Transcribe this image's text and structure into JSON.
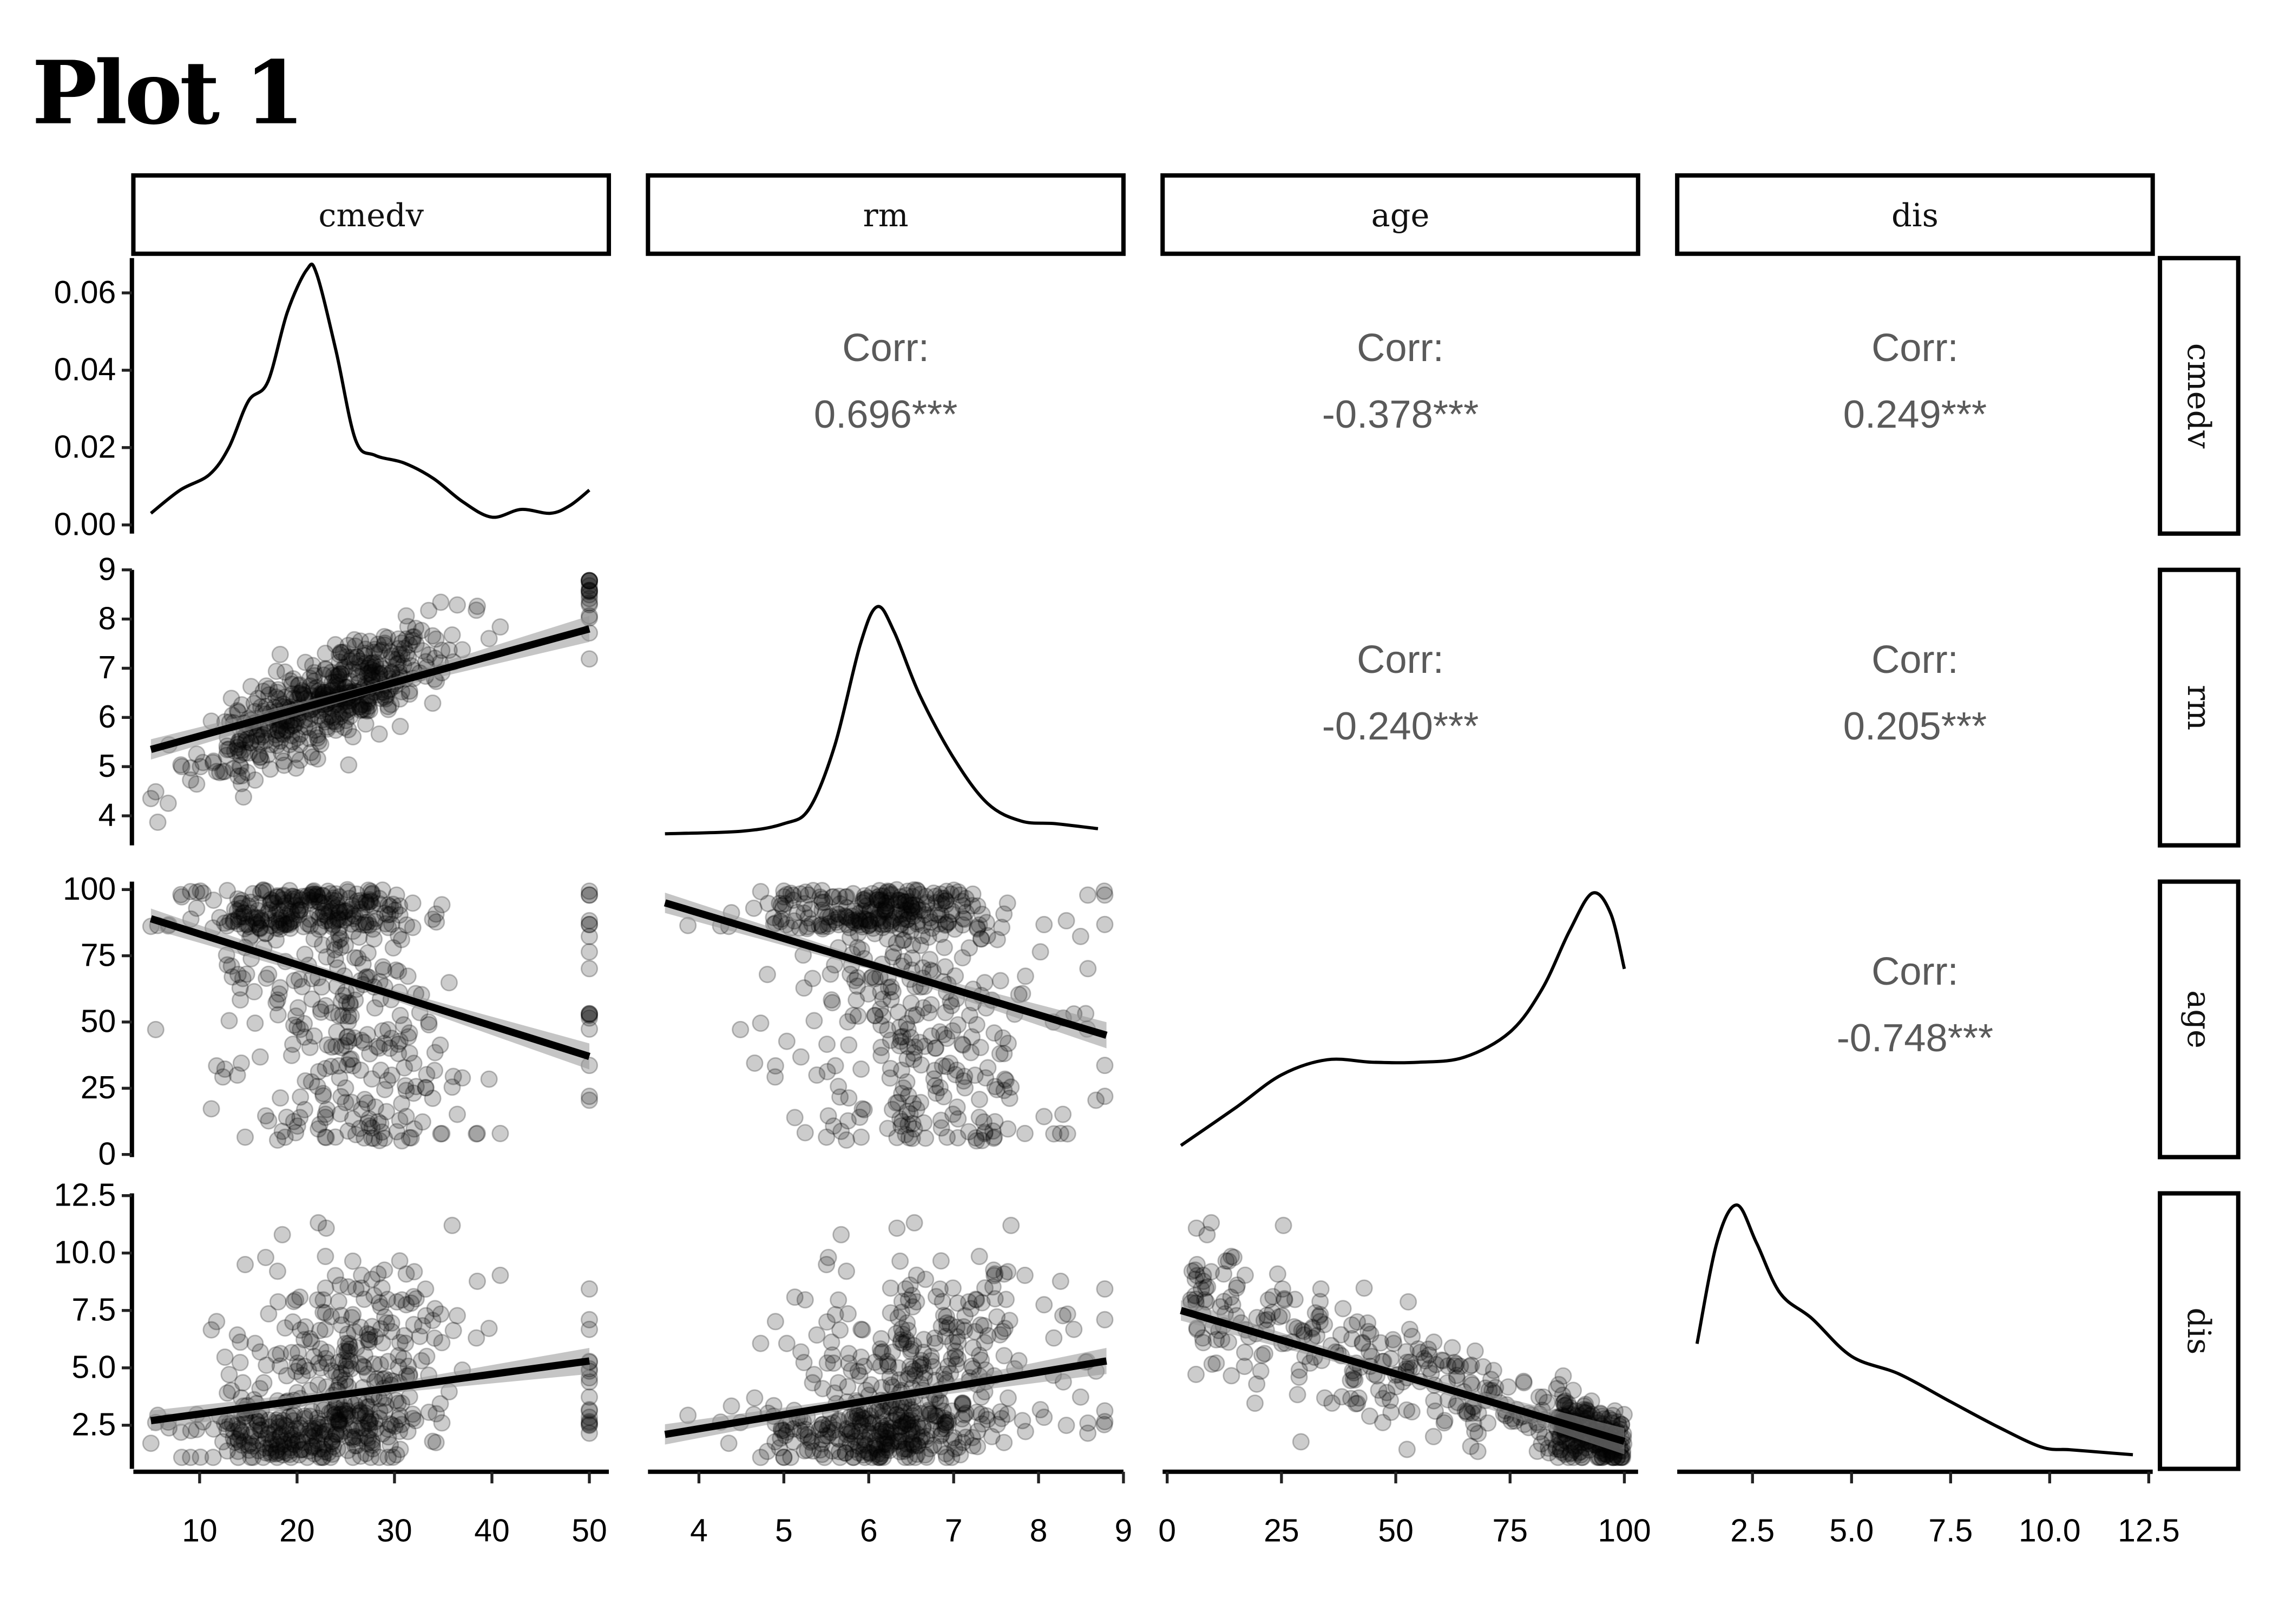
{
  "title": "Plot 1",
  "chart_data": {
    "type": "scatter",
    "kind": "pairs-matrix",
    "title": "Plot 1",
    "variables": [
      "cmedv",
      "rm",
      "age",
      "dis"
    ],
    "axes": {
      "cmedv": {
        "range": [
          3.2,
          52
        ],
        "ticks": [
          10,
          20,
          30,
          40,
          50
        ],
        "tick_labels": [
          "10",
          "20",
          "30",
          "40",
          "50"
        ]
      },
      "rm": {
        "range": [
          3.4,
          9
        ],
        "ticks": [
          4,
          5,
          6,
          7,
          8,
          9
        ],
        "tick_labels": [
          "4",
          "5",
          "6",
          "7",
          "8",
          "9"
        ]
      },
      "age": {
        "range": [
          -1,
          103
        ],
        "ticks": [
          0,
          25,
          50,
          75,
          100
        ],
        "tick_labels": [
          "0",
          "25",
          "50",
          "75",
          "100"
        ]
      },
      "dis": {
        "range": [
          0.6,
          12.6
        ],
        "ticks": [
          2.5,
          5.0,
          7.5,
          10.0,
          12.5
        ],
        "tick_labels": [
          "2.5",
          "5.0",
          "7.5",
          "10.0",
          "12.5"
        ]
      }
    },
    "density_axis": {
      "range": [
        0,
        0.069
      ],
      "ticks": [
        0,
        0.02,
        0.04,
        0.06
      ],
      "tick_labels": [
        "0.00",
        "0.02",
        "0.04",
        "0.06"
      ]
    },
    "correlations": [
      {
        "row": "cmedv",
        "col": "rm",
        "label": "Corr:",
        "value": "0.696***"
      },
      {
        "row": "cmedv",
        "col": "age",
        "label": "Corr:",
        "value": "-0.378***"
      },
      {
        "row": "cmedv",
        "col": "dis",
        "label": "Corr:",
        "value": "0.249***"
      },
      {
        "row": "rm",
        "col": "age",
        "label": "Corr:",
        "value": "-0.240***"
      },
      {
        "row": "rm",
        "col": "dis",
        "label": "Corr:",
        "value": "0.205***"
      },
      {
        "row": "age",
        "col": "dis",
        "label": "Corr:",
        "value": "-0.748***"
      }
    ],
    "densities": {
      "cmedv": {
        "x": [
          5,
          8,
          11,
          13,
          15,
          17,
          19,
          21,
          22,
          24,
          26,
          28,
          31,
          34,
          37,
          40,
          43,
          46,
          48,
          50
        ],
        "y": [
          0.003,
          0.009,
          0.013,
          0.02,
          0.032,
          0.037,
          0.055,
          0.066,
          0.065,
          0.045,
          0.022,
          0.018,
          0.016,
          0.012,
          0.006,
          0.002,
          0.004,
          0.003,
          0.005,
          0.009
        ]
      },
      "rm": {
        "x": [
          3.6,
          4.5,
          5.0,
          5.3,
          5.6,
          5.9,
          6.1,
          6.3,
          6.6,
          7.0,
          7.4,
          7.8,
          8.2,
          8.7
        ],
        "y": [
          0.0,
          0.01,
          0.04,
          0.1,
          0.35,
          0.75,
          0.9,
          0.8,
          0.55,
          0.3,
          0.12,
          0.05,
          0.04,
          0.02
        ]
      },
      "age": {
        "x": [
          3,
          15,
          25,
          35,
          45,
          55,
          65,
          75,
          82,
          88,
          93,
          97,
          100
        ],
        "y": [
          0.0,
          0.15,
          0.28,
          0.34,
          0.33,
          0.33,
          0.35,
          0.45,
          0.62,
          0.85,
          1.0,
          0.92,
          0.7
        ]
      },
      "dis": {
        "x": [
          1.1,
          1.6,
          2.1,
          2.6,
          3.2,
          4.0,
          5.0,
          6.2,
          7.5,
          8.7,
          9.8,
          10.5,
          11.3,
          12.1
        ],
        "y": [
          0.45,
          0.85,
          1.0,
          0.85,
          0.65,
          0.55,
          0.4,
          0.33,
          0.22,
          0.12,
          0.04,
          0.03,
          0.02,
          0.01
        ]
      }
    },
    "regressions": [
      {
        "x_var": "cmedv",
        "y_var": "rm",
        "x": [
          5,
          50
        ],
        "y": [
          5.35,
          7.8
        ]
      },
      {
        "x_var": "cmedv",
        "y_var": "age",
        "x": [
          5,
          50
        ],
        "y": [
          89,
          37
        ]
      },
      {
        "x_var": "rm",
        "y_var": "age",
        "x": [
          3.6,
          8.8
        ],
        "y": [
          95,
          45
        ]
      },
      {
        "x_var": "cmedv",
        "y_var": "dis",
        "x": [
          5,
          50
        ],
        "y": [
          2.7,
          5.3
        ]
      },
      {
        "x_var": "rm",
        "y_var": "dis",
        "x": [
          3.6,
          8.8
        ],
        "y": [
          2.1,
          5.3
        ]
      },
      {
        "x_var": "age",
        "y_var": "dis",
        "x": [
          3,
          100
        ],
        "y": [
          7.5,
          1.8
        ]
      }
    ],
    "n_points": 506,
    "point_alpha": 0.2,
    "grid": false,
    "legend": "none"
  },
  "colors": {
    "points": "#000000",
    "lines": "#000000",
    "ci_band": "#bdbdbd",
    "corr_text": "#5a5a5a",
    "strip_border": "#000000"
  }
}
